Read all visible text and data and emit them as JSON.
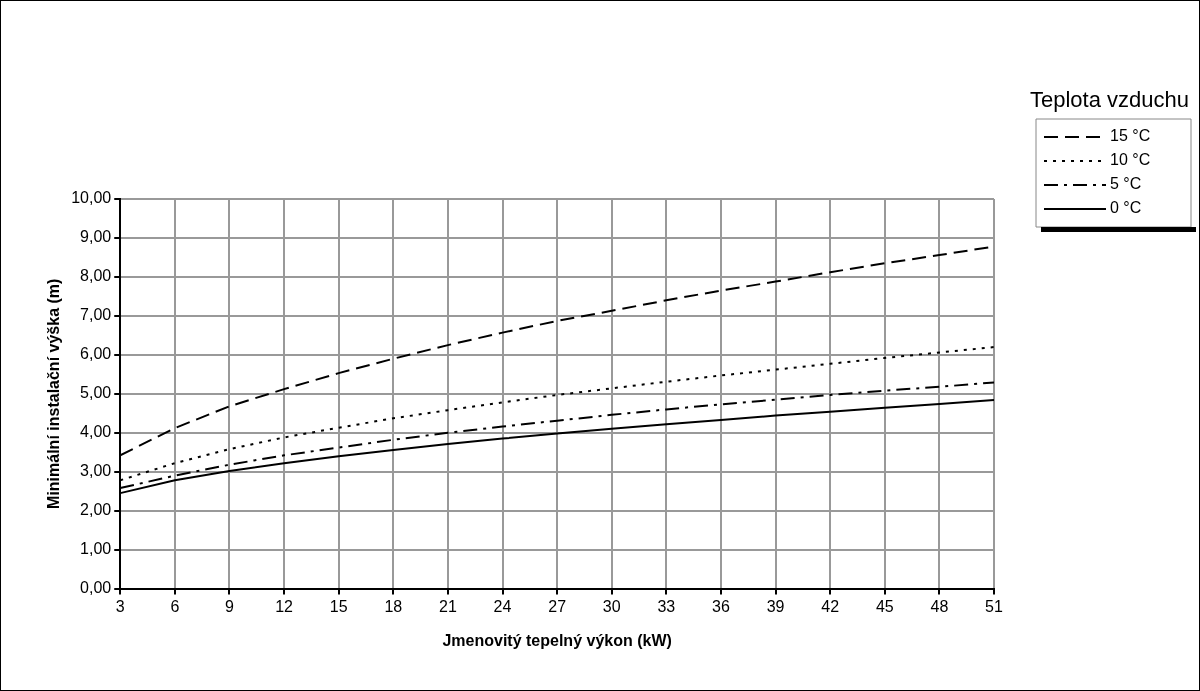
{
  "chart_data": {
    "type": "line",
    "xlabel": "Jmenovitý tepelný výkon (kW)",
    "ylabel": "Minimální instalační výška (m)",
    "legend_title": "Teplota vzduchu",
    "x": [
      3,
      6,
      9,
      12,
      15,
      18,
      21,
      24,
      27,
      30,
      33,
      36,
      39,
      42,
      45,
      48,
      51
    ],
    "series": [
      {
        "name": "15 °C",
        "color": "#000000",
        "line_style": "dashed",
        "values": [
          3.42,
          4.12,
          4.68,
          5.12,
          5.53,
          5.9,
          6.25,
          6.57,
          6.87,
          7.13,
          7.4,
          7.65,
          7.88,
          8.12,
          8.35,
          8.56,
          8.78
        ]
      },
      {
        "name": "10 °C",
        "color": "#000000",
        "line_style": "dotted",
        "values": [
          2.78,
          3.22,
          3.58,
          3.88,
          4.13,
          4.37,
          4.58,
          4.78,
          4.97,
          5.14,
          5.31,
          5.47,
          5.62,
          5.77,
          5.92,
          6.06,
          6.2
        ]
      },
      {
        "name": "5 °C",
        "color": "#000000",
        "line_style": "dashdot",
        "values": [
          2.58,
          2.9,
          3.18,
          3.42,
          3.62,
          3.82,
          4.0,
          4.16,
          4.31,
          4.46,
          4.6,
          4.73,
          4.85,
          4.97,
          5.08,
          5.18,
          5.29
        ]
      },
      {
        "name": "0 °C",
        "color": "#000000",
        "line_style": "solid",
        "values": [
          2.45,
          2.78,
          3.02,
          3.22,
          3.4,
          3.56,
          3.71,
          3.85,
          3.98,
          4.1,
          4.22,
          4.33,
          4.44,
          4.54,
          4.64,
          4.74,
          4.84
        ]
      }
    ],
    "xlim": [
      3,
      51
    ],
    "xticks": [
      3,
      6,
      9,
      12,
      15,
      18,
      21,
      24,
      27,
      30,
      33,
      36,
      39,
      42,
      45,
      48,
      51
    ],
    "ylim": [
      0,
      10
    ],
    "yticks": [
      {
        "value": 0,
        "label": "0,00"
      },
      {
        "value": 1,
        "label": "1,00"
      },
      {
        "value": 2,
        "label": "2,00"
      },
      {
        "value": 3,
        "label": "3,00"
      },
      {
        "value": 4,
        "label": "4,00"
      },
      {
        "value": 5,
        "label": "5,00"
      },
      {
        "value": 6,
        "label": "6,00"
      },
      {
        "value": 7,
        "label": "7,00"
      },
      {
        "value": 8,
        "label": "8,00"
      },
      {
        "value": 9,
        "label": "9,00"
      },
      {
        "value": 10,
        "label": "10,00"
      }
    ],
    "grid": true,
    "legend": "top right",
    "marker": "none"
  }
}
